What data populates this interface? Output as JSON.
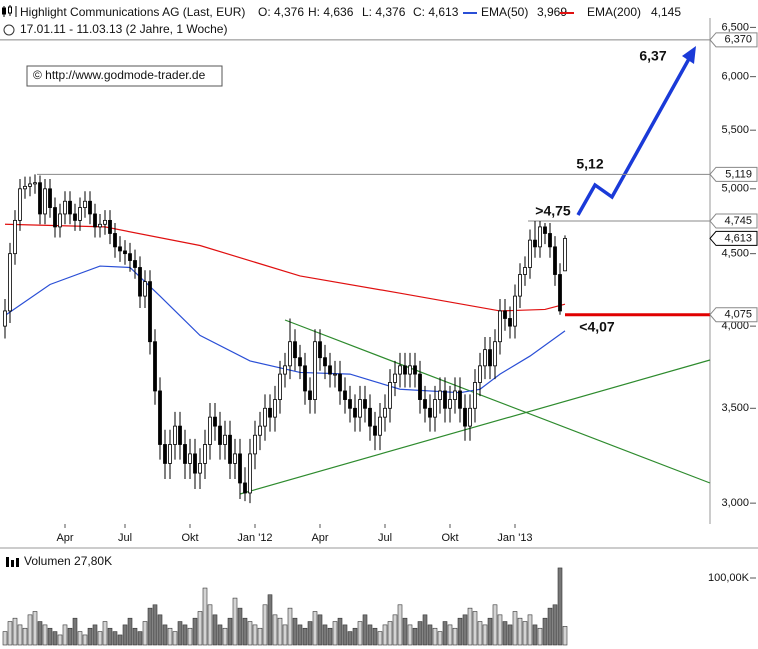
{
  "chart_data": {
    "type": "candlestick",
    "title": "Highlight Communications AG (Last, EUR)",
    "ohlc_text": [
      "O: 4,376",
      "H: 4,636",
      "L: 4,376",
      "C: 4,613"
    ],
    "subtitle": "17.01.11 - 11.03.13 (2 Jahre, 1 Woche)",
    "source": "© http://www.godmode-trader.de",
    "categories": [
      null,
      null,
      null,
      null,
      null,
      null,
      null,
      null,
      null,
      null,
      null,
      null,
      "Apr",
      null,
      null,
      null,
      null,
      null,
      null,
      null,
      null,
      null,
      null,
      null,
      "Jul",
      null,
      null,
      null,
      null,
      null,
      null,
      null,
      null,
      null,
      null,
      null,
      null,
      "Okt",
      null,
      null,
      null,
      null,
      null,
      null,
      null,
      null,
      null,
      null,
      null,
      null,
      "Jan '12",
      null,
      null,
      null,
      null,
      null,
      null,
      null,
      null,
      null,
      null,
      null,
      null,
      "Apr",
      null,
      null,
      null,
      null,
      null,
      null,
      null,
      null,
      null,
      null,
      null,
      null,
      "Jul",
      null,
      null,
      null,
      null,
      null,
      null,
      null,
      null,
      null,
      null,
      null,
      null,
      "Okt",
      null,
      null,
      null,
      null,
      null,
      null,
      null,
      null,
      null,
      null,
      null,
      null,
      "Jan '13",
      null,
      null,
      null,
      null,
      null,
      null,
      null,
      null,
      null,
      null
    ],
    "open": [
      4.0,
      4.1,
      4.5,
      4.75,
      5.0,
      5.02,
      5.04,
      5.05,
      4.8,
      5.0,
      4.85,
      4.7,
      4.8,
      4.9,
      4.8,
      4.75,
      4.85,
      4.9,
      4.8,
      4.7,
      4.72,
      4.75,
      4.65,
      4.55,
      4.52,
      4.5,
      4.45,
      4.4,
      4.2,
      4.3,
      3.9,
      3.6,
      3.3,
      3.2,
      3.3,
      3.4,
      3.3,
      3.2,
      3.25,
      3.15,
      3.2,
      3.3,
      3.45,
      3.4,
      3.3,
      3.35,
      3.2,
      3.25,
      3.1,
      3.05,
      3.25,
      3.35,
      3.4,
      3.5,
      3.45,
      3.55,
      3.7,
      3.75,
      3.9,
      3.8,
      3.75,
      3.6,
      3.55,
      3.9,
      3.8,
      3.75,
      3.7,
      3.7,
      3.6,
      3.55,
      3.5,
      3.45,
      3.55,
      3.5,
      3.4,
      3.35,
      3.45,
      3.5,
      3.65,
      3.7,
      3.75,
      3.7,
      3.75,
      3.7,
      3.55,
      3.5,
      3.45,
      3.55,
      3.6,
      3.5,
      3.55,
      3.6,
      3.5,
      3.4,
      3.5,
      3.65,
      3.75,
      3.85,
      3.75,
      3.9,
      4.1,
      4.05,
      4.0,
      4.2,
      4.35,
      4.4,
      4.6,
      4.55,
      4.7,
      4.65,
      4.55,
      4.35,
      4.376
    ],
    "high": [
      4.18,
      4.58,
      4.83,
      5.08,
      5.1,
      5.1,
      5.119,
      5.11,
      5.08,
      5.08,
      4.93,
      4.88,
      4.98,
      4.98,
      4.88,
      4.93,
      4.98,
      4.98,
      4.88,
      4.8,
      4.83,
      4.83,
      4.73,
      4.63,
      4.6,
      4.58,
      4.53,
      4.48,
      4.38,
      4.38,
      3.98,
      3.68,
      3.38,
      3.38,
      3.48,
      3.48,
      3.38,
      3.33,
      3.33,
      3.28,
      3.38,
      3.53,
      3.53,
      3.48,
      3.43,
      3.43,
      3.33,
      3.33,
      3.18,
      3.33,
      3.43,
      3.48,
      3.58,
      3.58,
      3.63,
      3.78,
      3.83,
      4.05,
      3.98,
      3.88,
      3.83,
      3.68,
      3.98,
      3.98,
      3.88,
      3.83,
      3.78,
      3.78,
      3.68,
      3.63,
      3.58,
      3.63,
      3.63,
      3.58,
      3.48,
      3.53,
      3.58,
      3.73,
      3.78,
      3.83,
      3.83,
      3.83,
      3.83,
      3.78,
      3.63,
      3.58,
      3.63,
      3.68,
      3.68,
      3.63,
      3.68,
      3.68,
      3.58,
      3.58,
      3.73,
      3.83,
      3.93,
      3.93,
      3.98,
      4.18,
      4.18,
      4.13,
      4.28,
      4.43,
      4.48,
      4.68,
      4.745,
      4.745,
      4.73,
      4.73,
      4.63,
      4.43,
      4.636
    ],
    "low": [
      3.92,
      4.02,
      4.42,
      4.67,
      4.92,
      4.94,
      4.96,
      4.72,
      4.72,
      4.77,
      4.62,
      4.62,
      4.72,
      4.72,
      4.67,
      4.67,
      4.77,
      4.72,
      4.62,
      4.62,
      4.64,
      4.57,
      4.47,
      4.44,
      4.42,
      4.37,
      4.32,
      4.12,
      4.12,
      3.82,
      3.52,
      3.22,
      3.12,
      3.12,
      3.22,
      3.22,
      3.12,
      3.12,
      3.07,
      3.07,
      3.12,
      3.22,
      3.32,
      3.22,
      3.22,
      3.12,
      3.12,
      3.02,
      3.01,
      3.0,
      3.17,
      3.27,
      3.32,
      3.37,
      3.37,
      3.47,
      3.62,
      3.67,
      3.72,
      3.67,
      3.52,
      3.47,
      3.47,
      3.72,
      3.67,
      3.62,
      3.62,
      3.52,
      3.47,
      3.42,
      3.37,
      3.37,
      3.42,
      3.32,
      3.27,
      3.27,
      3.37,
      3.42,
      3.57,
      3.62,
      3.62,
      3.62,
      3.62,
      3.47,
      3.42,
      3.37,
      3.37,
      3.47,
      3.42,
      3.42,
      3.47,
      3.42,
      3.32,
      3.32,
      3.42,
      3.57,
      3.67,
      3.67,
      3.67,
      3.82,
      3.97,
      3.92,
      3.92,
      4.12,
      4.27,
      4.32,
      4.47,
      4.47,
      4.57,
      4.47,
      4.27,
      4.075,
      4.376
    ],
    "close": [
      4.1,
      4.5,
      4.75,
      5.0,
      5.02,
      5.04,
      5.05,
      4.8,
      5.0,
      4.85,
      4.7,
      4.8,
      4.9,
      4.8,
      4.75,
      4.85,
      4.9,
      4.8,
      4.7,
      4.72,
      4.75,
      4.65,
      4.55,
      4.52,
      4.5,
      4.45,
      4.4,
      4.2,
      4.3,
      3.9,
      3.6,
      3.3,
      3.2,
      3.3,
      3.4,
      3.3,
      3.2,
      3.25,
      3.15,
      3.2,
      3.3,
      3.45,
      3.4,
      3.3,
      3.35,
      3.2,
      3.25,
      3.1,
      3.05,
      3.25,
      3.35,
      3.4,
      3.5,
      3.45,
      3.55,
      3.7,
      3.75,
      3.9,
      3.8,
      3.75,
      3.6,
      3.55,
      3.9,
      3.8,
      3.75,
      3.7,
      3.7,
      3.6,
      3.55,
      3.5,
      3.45,
      3.55,
      3.5,
      3.4,
      3.35,
      3.45,
      3.5,
      3.65,
      3.7,
      3.75,
      3.7,
      3.75,
      3.7,
      3.55,
      3.5,
      3.45,
      3.55,
      3.6,
      3.5,
      3.55,
      3.6,
      3.5,
      3.4,
      3.5,
      3.65,
      3.75,
      3.85,
      3.75,
      3.9,
      4.1,
      4.05,
      4.0,
      4.2,
      4.35,
      4.4,
      4.6,
      4.55,
      4.7,
      4.65,
      4.55,
      4.35,
      4.1,
      4.613
    ],
    "up_color": "#ffffff",
    "down_color": "#000000",
    "log_scale": true,
    "ylim": [
      2.9,
      6.6
    ],
    "yticks": [
      {
        "value": 3,
        "label": "3,000"
      },
      {
        "value": 3.5,
        "label": "3,500"
      },
      {
        "value": 4,
        "label": "4,000"
      },
      {
        "value": 4.5,
        "label": "4,500"
      },
      {
        "value": 5,
        "label": "5,000"
      },
      {
        "value": 5.5,
        "label": "5,500"
      },
      {
        "value": 6,
        "label": "6,000"
      },
      {
        "value": 6.5,
        "label": "6,500"
      }
    ],
    "series": [
      {
        "name": "EMA(50)",
        "color": "#2a4fd6",
        "legend_value": "3,969",
        "x": [
          0,
          9,
          19,
          25,
          31,
          39,
          49,
          59,
          69,
          79,
          91,
          95,
          99,
          105,
          112
        ],
        "values": [
          4.07,
          4.28,
          4.41,
          4.4,
          4.2,
          3.94,
          3.78,
          3.71,
          3.7,
          3.61,
          3.59,
          3.61,
          3.7,
          3.81,
          3.969
        ]
      },
      {
        "name": "EMA(200)",
        "color": "#e01010",
        "legend_value": "4,145",
        "x": [
          0,
          20,
          39,
          59,
          79,
          99,
          108,
          112
        ],
        "values": [
          4.72,
          4.7,
          4.56,
          4.34,
          4.22,
          4.1,
          4.11,
          4.145
        ]
      }
    ],
    "levels": [
      {
        "value": 6.37,
        "label": "6,370"
      },
      {
        "value": 5.119,
        "label": "5,119"
      },
      {
        "value": 4.745,
        "label": "4,745"
      },
      {
        "value": 4.613,
        "label": "4,613"
      },
      {
        "value": 4.075,
        "label": "4,075",
        "color": "#e00000"
      }
    ],
    "annotations": [
      {
        "text": "6,37",
        "color": "#1a3ad8"
      },
      {
        "text": "5,12",
        "color": "#1a3ad8"
      },
      {
        "text": ">4,75",
        "color": "#1a3ad8"
      },
      {
        "text": "<4,07",
        "color": "#e00000"
      }
    ],
    "volume": {
      "label": "Volumen 27,80K",
      "ylim": [
        0,
        150
      ],
      "yticks": [
        {
          "value": 100,
          "label": "100,00K"
        }
      ],
      "up_color": "#d4d4d4",
      "down_color": "#777777",
      "values": [
        20,
        35,
        40,
        30,
        25,
        45,
        50,
        35,
        30,
        25,
        20,
        15,
        30,
        25,
        40,
        20,
        15,
        25,
        30,
        20,
        35,
        25,
        20,
        15,
        30,
        40,
        25,
        20,
        35,
        55,
        60,
        45,
        30,
        25,
        20,
        35,
        30,
        25,
        40,
        50,
        85,
        60,
        45,
        30,
        25,
        40,
        70,
        55,
        40,
        35,
        30,
        25,
        60,
        75,
        45,
        40,
        30,
        55,
        40,
        30,
        25,
        35,
        50,
        45,
        30,
        25,
        35,
        40,
        30,
        20,
        25,
        35,
        45,
        30,
        25,
        20,
        30,
        35,
        45,
        60,
        40,
        30,
        25,
        35,
        45,
        30,
        25,
        20,
        35,
        30,
        25,
        40,
        45,
        55,
        50,
        35,
        30,
        40,
        60,
        45,
        35,
        30,
        50,
        40,
        35,
        45,
        30,
        25,
        40,
        55,
        60,
        115,
        27.8
      ]
    }
  }
}
